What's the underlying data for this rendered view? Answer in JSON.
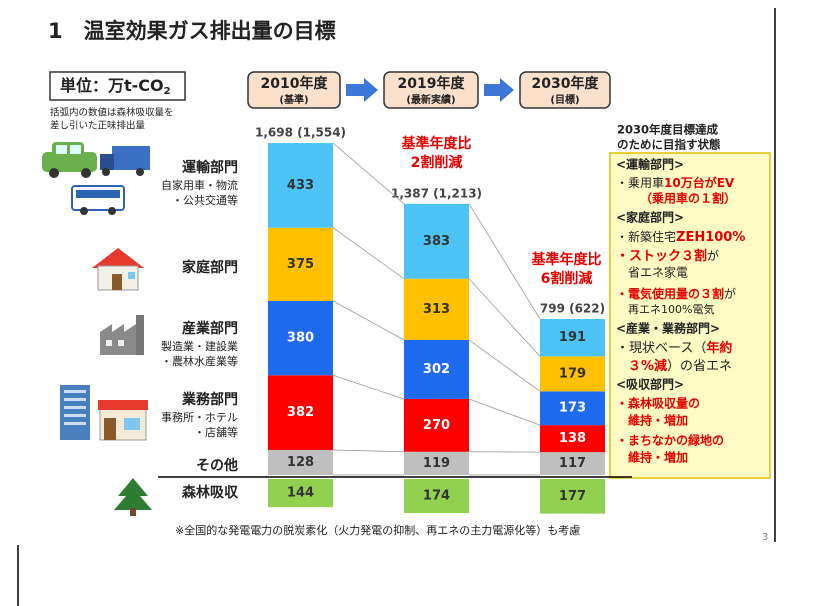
{
  "header": {
    "title": "1　温室効果ガス排出量の目標"
  },
  "unit": {
    "label": "単位：万t-CO",
    "subscript": "2",
    "note": [
      "括弧内の数値は森林吸収量を",
      "差し引いた正味排出量"
    ]
  },
  "chart_data": {
    "type": "bar",
    "stacked": true,
    "categories": [
      "2010年度",
      "2019年度",
      "2030年度"
    ],
    "category_sublabels": [
      "(基準)",
      "(最新実績)",
      "(目標)"
    ],
    "totals": [
      "1,698 (1,554)",
      "1,387 (1,213)",
      "799 (622)"
    ],
    "series": [
      {
        "name": "その他",
        "details": [],
        "color": "#bfbfbf",
        "label_color": "#333333",
        "values": [
          128,
          119,
          117
        ]
      },
      {
        "name": "業務部門",
        "details": [
          "事務所・ホテル",
          "・店舗等"
        ],
        "color": "#ff0000",
        "label_color": "#ffffff",
        "values": [
          382,
          270,
          138
        ]
      },
      {
        "name": "産業部門",
        "details": [
          "製造業・建設業",
          "・農林水産業等"
        ],
        "color": "#1f6bf0",
        "label_color": "#ffffff",
        "values": [
          380,
          302,
          173
        ]
      },
      {
        "name": "家庭部門",
        "details": [],
        "color": "#ffc000",
        "label_color": "#333333",
        "values": [
          375,
          313,
          179
        ]
      },
      {
        "name": "運輸部門",
        "details": [
          "自家用車・物流",
          "・公共交通等"
        ],
        "color": "#4dc3f5",
        "label_color": "#333333",
        "values": [
          433,
          383,
          191
        ]
      },
      {
        "name": "森林吸収",
        "details": [],
        "color": "#92d050",
        "label_color": "#333333",
        "below_baseline": true,
        "values": [
          144,
          174,
          177
        ]
      }
    ],
    "annotations": [
      {
        "category": 1,
        "lines": [
          "基準年度比",
          "2割削減"
        ]
      },
      {
        "category": 2,
        "lines": [
          "基準年度比",
          "6割削減"
        ]
      }
    ]
  },
  "panel": {
    "heading": [
      "2030年度目標達成",
      "のために目指す状態"
    ],
    "lines": [
      [
        "<運輸部門>"
      ],
      [
        "・乗用車",
        "10万台がEV"
      ],
      [
        "（乗用車の１割）"
      ],
      [
        "<家庭部門>"
      ],
      [
        "・新築住宅",
        "ZEH100%"
      ],
      [
        "・ストック３割",
        "が"
      ],
      [
        "省エネ家電"
      ],
      [
        "・電気使用量の３割",
        "が"
      ],
      [
        "再エネ100%電気"
      ],
      [
        "<産業・業務部門>"
      ],
      [
        "・現状ベース（",
        "年約"
      ],
      [
        "３%減",
        "）の省エネ"
      ],
      [
        "<吸収部門>"
      ],
      [
        "・森林吸収量の"
      ],
      [
        "維持・増加"
      ],
      [
        "・まちなかの緑地の"
      ],
      [
        "維持・増加"
      ]
    ]
  },
  "footnote": "※全国的な発電電力の脱炭素化（火力発電の抑制、再エネの主力電源化等）も考慮",
  "page_number": "3"
}
